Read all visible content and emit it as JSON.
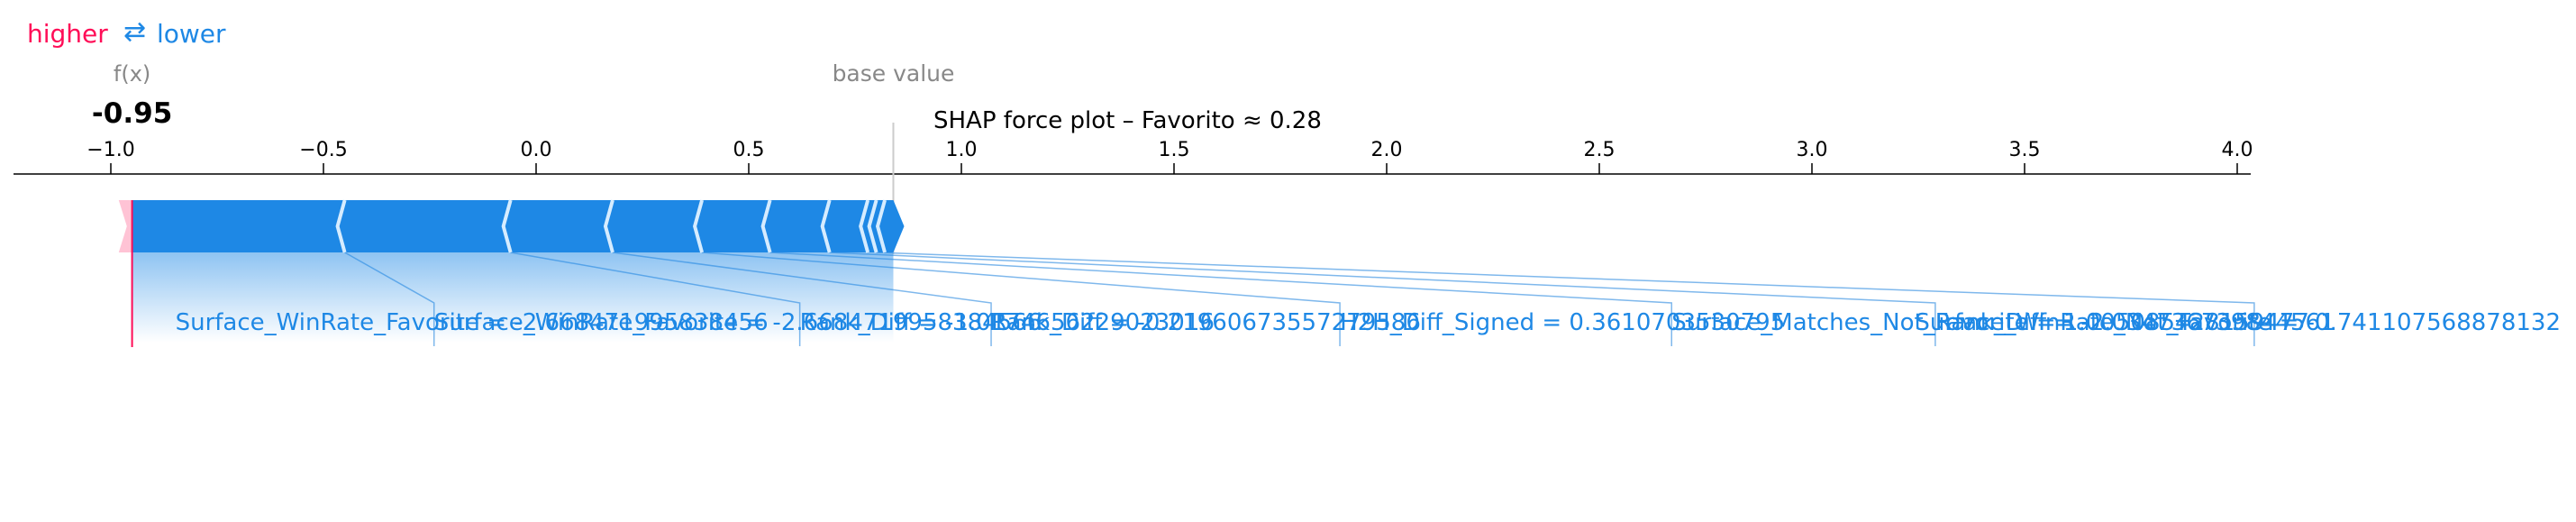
{
  "chart_data": {
    "type": "force",
    "title": "SHAP force plot – Favorito ≈ 0.28",
    "legend": {
      "higher_label": "higher",
      "arrow_glyph": "⇄",
      "lower_label": "lower",
      "higher_color": "#ff0d57",
      "lower_color": "#1e88e5"
    },
    "fx_label": "f(x)",
    "fx_value_text": "-0.95",
    "fx_value": -0.95,
    "base_label": "base value",
    "base_value": 0.84,
    "xlim": [
      -1.0,
      4.0
    ],
    "ticks": [
      {
        "value": -1.0,
        "label": "−1.0"
      },
      {
        "value": -0.5,
        "label": "−0.5"
      },
      {
        "value": 0.0,
        "label": "0.0"
      },
      {
        "value": 0.5,
        "label": "0.5"
      },
      {
        "value": 1.0,
        "label": "1.0"
      },
      {
        "value": 1.5,
        "label": "1.5"
      },
      {
        "value": 2.0,
        "label": "2.0"
      },
      {
        "value": 2.5,
        "label": "2.5"
      },
      {
        "value": 3.0,
        "label": "3.0"
      },
      {
        "value": 3.5,
        "label": "3.5"
      },
      {
        "value": 4.0,
        "label": "4.0"
      }
    ],
    "negative_segment_bounds": [
      -0.95,
      -0.45,
      -0.06,
      0.18,
      0.39,
      0.55,
      0.69,
      0.78,
      0.8,
      0.82,
      0.84
    ],
    "positive_bar": [
      -0.975,
      -0.95
    ],
    "labels": [
      {
        "text": "Surface_WinRate_Favorite = -2.668471995838456",
        "value": -0.95,
        "anchor": -0.95
      },
      {
        "text": "Surface_WinRate_Favorite = -2.6684719958384566",
        "value": -0.45,
        "anchor": -0.24
      },
      {
        "text": "Rank_Diff = -1.0174656229023016",
        "value": -0.06,
        "anchor": 0.62
      },
      {
        "text": "Rank_Diff = -0.21960673557279586",
        "value": 0.18,
        "anchor": 1.07
      },
      {
        "text": "H2H_Diff_Signed = 0.3610703530795",
        "value": 0.39,
        "anchor": 1.89
      },
      {
        "text": "Surface_Matches_Not_Favorite = 1.005085428159477",
        "value": 0.55,
        "anchor": 2.67
      },
      {
        "text": "Rank_Diff = -2.034736739844561",
        "value": 0.69,
        "anchor": 3.29
      },
      {
        "text": "Surface_WinRate_Not_Favorite = -0.741107568878132",
        "value": 0.8,
        "anchor": 4.04
      }
    ]
  }
}
